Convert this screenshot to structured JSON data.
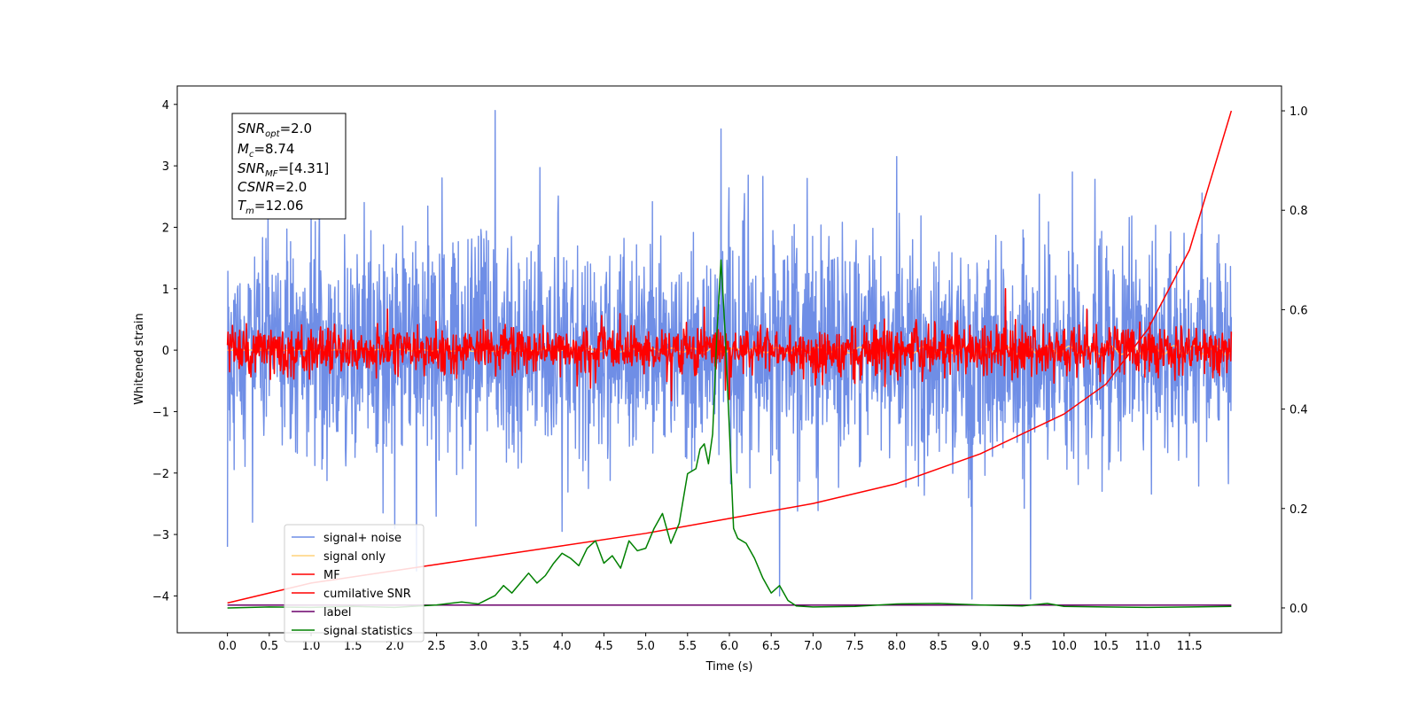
{
  "chart_data": {
    "type": "line",
    "xlabel": "Time (s)",
    "ylabel": "Whitened strain",
    "xlim": [
      -0.6,
      12.6
    ],
    "ylim": [
      -4.6,
      4.3
    ],
    "y2lim": [
      -0.05,
      1.05
    ],
    "x_ticks": [
      "0.0",
      "0.5",
      "1.0",
      "1.5",
      "2.0",
      "2.5",
      "3.0",
      "3.5",
      "4.0",
      "4.5",
      "5.0",
      "5.5",
      "6.0",
      "6.5",
      "7.0",
      "7.5",
      "8.0",
      "8.5",
      "9.0",
      "9.5",
      "10.0",
      "10.5",
      "11.0",
      "11.5"
    ],
    "y_ticks": [
      "4",
      "3",
      "2",
      "1",
      "0",
      "−1",
      "−2",
      "−3",
      "−4"
    ],
    "y2_ticks": [
      "1.0",
      "0.8",
      "0.6",
      "0.4",
      "0.2",
      "0.0"
    ],
    "legend_position": "lower-left",
    "annotation": {
      "snr_opt": {
        "base": "SNR",
        "sub": "opt",
        "value": "=2.0"
      },
      "mc": {
        "base": "M",
        "sub": "c",
        "value": "=8.74"
      },
      "snr_mf": {
        "base": "SNR",
        "sub": "MF",
        "value": "=[4.31]"
      },
      "csnr": {
        "base": "CSNR",
        "sub": "",
        "value": "=2.0"
      },
      "tm": {
        "base": "T",
        "sub": "m",
        "value": "=12.06"
      }
    },
    "series": [
      {
        "name": "signal+ noise",
        "color": "#6f8ee6",
        "axis": "left",
        "x_range": [
          0,
          12.0
        ],
        "std": 0.9,
        "peaks": [
          [
            0.0,
            -3.2
          ],
          [
            0.3,
            -2.8
          ],
          [
            1.1,
            2.5
          ],
          [
            2.0,
            -2.9
          ],
          [
            3.2,
            3.9
          ],
          [
            4.0,
            -2.95
          ],
          [
            5.9,
            3.6
          ],
          [
            6.6,
            -4.0
          ],
          [
            8.9,
            -4.05
          ],
          [
            9.6,
            -4.05
          ],
          [
            8.0,
            3.15
          ],
          [
            10.1,
            2.9
          ]
        ]
      },
      {
        "name": "signal only",
        "color": "#ffd27a",
        "axis": "left",
        "x_range": [
          0,
          12.0
        ],
        "amplitude": 0.08
      },
      {
        "name": "MF",
        "color": "#ff0000",
        "axis": "left",
        "x_range": [
          0,
          12.0
        ],
        "std": 0.2,
        "peaks": [
          [
            5.7,
            0.7
          ],
          [
            9.3,
            1.0
          ],
          [
            5.95,
            -0.65
          ]
        ]
      },
      {
        "name": "cumilative SNR",
        "color": "#ff0000",
        "axis": "right",
        "x": [
          0,
          0.5,
          1,
          2,
          3,
          4,
          5,
          6,
          7,
          8,
          9,
          10,
          10.5,
          11,
          11.5,
          12.0
        ],
        "values": [
          0.01,
          0.03,
          0.05,
          0.075,
          0.1,
          0.125,
          0.15,
          0.18,
          0.21,
          0.25,
          0.31,
          0.39,
          0.45,
          0.56,
          0.72,
          1.0
        ]
      },
      {
        "name": "label",
        "color": "#6b006b",
        "axis": "left",
        "x": [
          0,
          12.0
        ],
        "values": [
          -4.15,
          -4.15
        ]
      },
      {
        "name": "signal statistics",
        "color": "#008000",
        "axis": "right",
        "x": [
          0,
          0.5,
          1.0,
          1.5,
          2.0,
          2.5,
          2.8,
          3.0,
          3.2,
          3.3,
          3.4,
          3.5,
          3.6,
          3.7,
          3.8,
          3.9,
          4.0,
          4.1,
          4.2,
          4.3,
          4.4,
          4.5,
          4.6,
          4.7,
          4.8,
          4.9,
          5.0,
          5.1,
          5.2,
          5.3,
          5.4,
          5.5,
          5.6,
          5.65,
          5.7,
          5.75,
          5.8,
          5.85,
          5.9,
          5.95,
          6.0,
          6.05,
          6.1,
          6.2,
          6.3,
          6.4,
          6.5,
          6.6,
          6.7,
          6.8,
          7.0,
          7.5,
          8.0,
          8.5,
          9.0,
          9.5,
          9.8,
          10.0,
          10.5,
          11.0,
          11.5,
          12.0
        ],
        "values": [
          0.0,
          0.002,
          0.001,
          0.003,
          0.001,
          0.006,
          0.012,
          0.008,
          0.025,
          0.045,
          0.03,
          0.05,
          0.07,
          0.05,
          0.065,
          0.09,
          0.11,
          0.1,
          0.085,
          0.12,
          0.135,
          0.09,
          0.105,
          0.08,
          0.135,
          0.115,
          0.12,
          0.16,
          0.19,
          0.13,
          0.17,
          0.27,
          0.28,
          0.32,
          0.33,
          0.29,
          0.35,
          0.55,
          0.7,
          0.55,
          0.36,
          0.16,
          0.14,
          0.13,
          0.1,
          0.06,
          0.03,
          0.045,
          0.015,
          0.004,
          0.002,
          0.003,
          0.008,
          0.009,
          0.006,
          0.004,
          0.009,
          0.003,
          0.002,
          0.001,
          0.002,
          0.003
        ]
      }
    ]
  }
}
